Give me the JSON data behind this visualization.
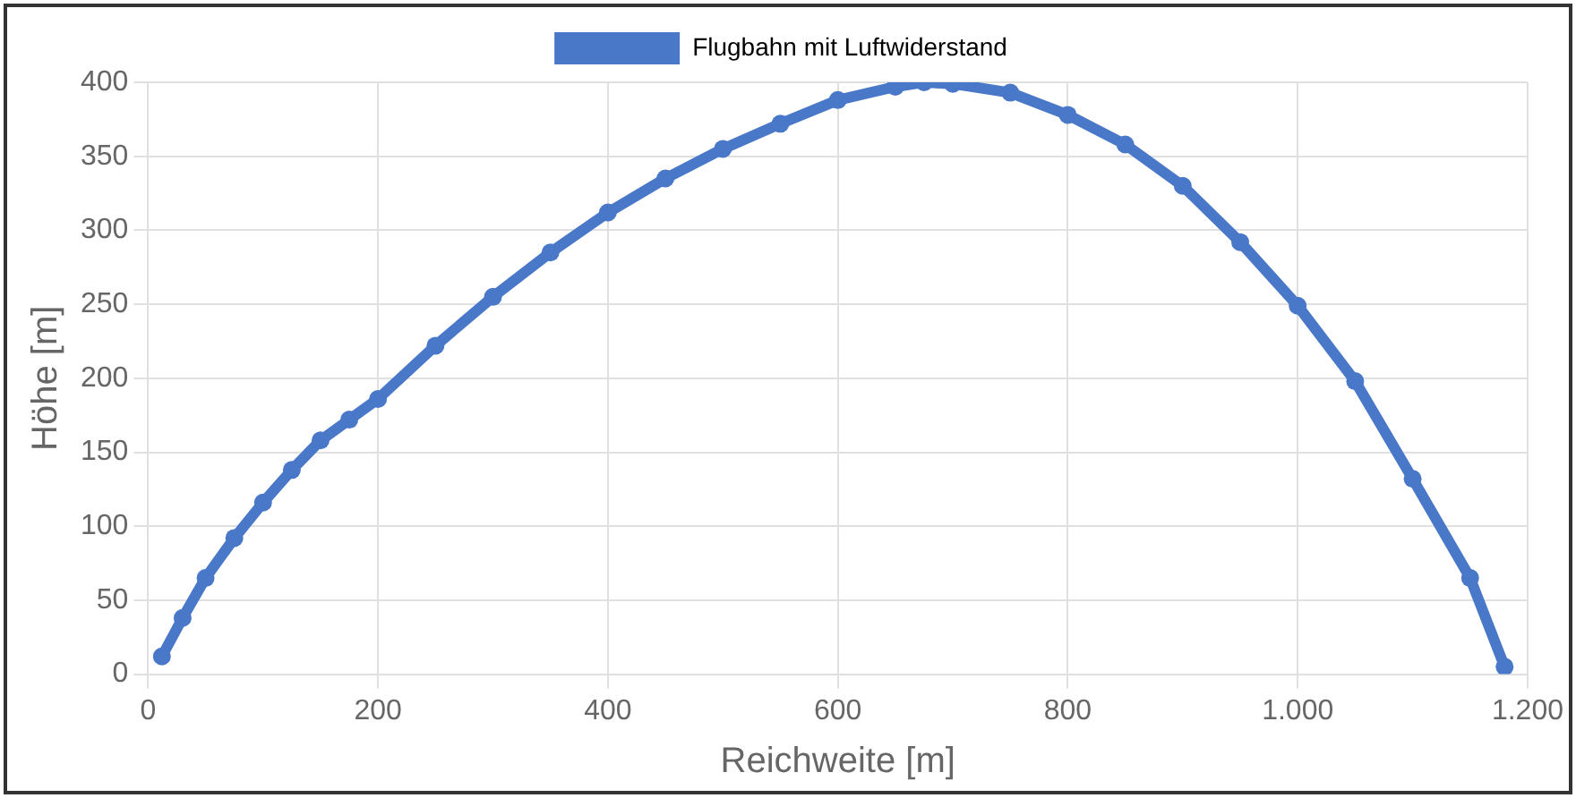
{
  "chart_data": {
    "type": "line",
    "xlabel": "Reichweite [m]",
    "ylabel": "Höhe [m]",
    "x": [
      12,
      30,
      50,
      75,
      100,
      125,
      150,
      175,
      200,
      250,
      300,
      350,
      400,
      450,
      500,
      550,
      600,
      650,
      675,
      700,
      750,
      800,
      850,
      900,
      950,
      1000,
      1050,
      1100,
      1150,
      1180
    ],
    "series": [
      {
        "name": "Flugbahn mit Luftwiderstand",
        "color": "#4a78c8",
        "values": [
          12,
          38,
          65,
          92,
          116,
          138,
          158,
          172,
          186,
          222,
          255,
          285,
          312,
          335,
          355,
          372,
          388,
          397,
          400,
          399,
          393,
          378,
          358,
          330,
          292,
          249,
          198,
          132,
          65,
          5
        ]
      }
    ],
    "xlim": [
      0,
      1200
    ],
    "xticks": [
      0,
      200,
      400,
      600,
      800,
      {
        "value": 1000,
        "label": "1.000"
      },
      {
        "value": 1200,
        "label": "1.200"
      }
    ],
    "ylim": [
      0,
      400
    ],
    "yticks": [
      0,
      50,
      100,
      150,
      200,
      250,
      300,
      350,
      400
    ],
    "grid": true,
    "legend": "top",
    "marker": "circle",
    "line_style": "solid"
  }
}
